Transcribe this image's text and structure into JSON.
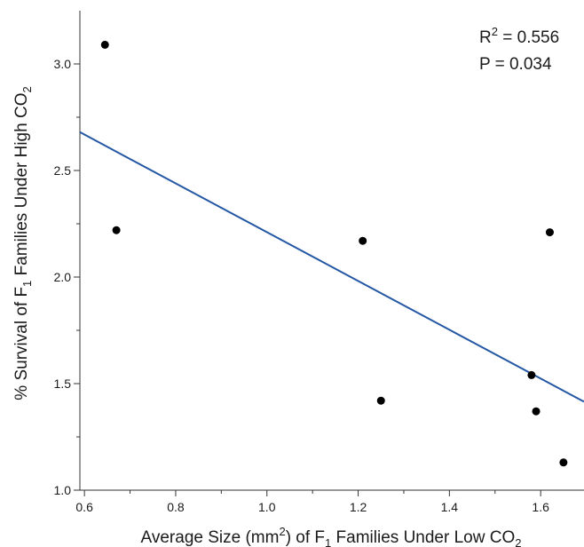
{
  "chart_data": {
    "type": "scatter",
    "title": "",
    "xlabel": {
      "before": "Average Size (mm",
      "sup": "2",
      "middle": ") of F",
      "sub1": "1",
      "after": " Families Under Low CO",
      "sub2": "2"
    },
    "ylabel": {
      "before": "% Survival of F",
      "sub1": "1",
      "after": " Families Under High CO",
      "sub2": "2"
    },
    "xlim": [
      0.59,
      1.695
    ],
    "ylim": [
      1.0,
      3.25
    ],
    "xticks": [
      "0.6",
      "0.8",
      "1.0",
      "1.2",
      "1.4",
      "1.6"
    ],
    "yticks": [
      "1.0",
      "1.5",
      "2.0",
      "2.5",
      "3.0"
    ],
    "grid": false,
    "points": [
      {
        "x": 0.645,
        "y": 3.09
      },
      {
        "x": 0.67,
        "y": 2.22
      },
      {
        "x": 1.21,
        "y": 2.17
      },
      {
        "x": 1.25,
        "y": 1.42
      },
      {
        "x": 1.58,
        "y": 1.54
      },
      {
        "x": 1.59,
        "y": 1.37
      },
      {
        "x": 1.62,
        "y": 2.21
      },
      {
        "x": 1.65,
        "y": 1.13
      }
    ],
    "fit_line": {
      "x0": 0.59,
      "y0": 2.68,
      "x1": 1.695,
      "y1": 1.415,
      "color": "#2357a4"
    },
    "point_color": "#000000",
    "annotation": {
      "r2_label": "R",
      "r2_sup": "2",
      "r2_value": " = 0.556",
      "p_text": "P = 0.034"
    }
  }
}
